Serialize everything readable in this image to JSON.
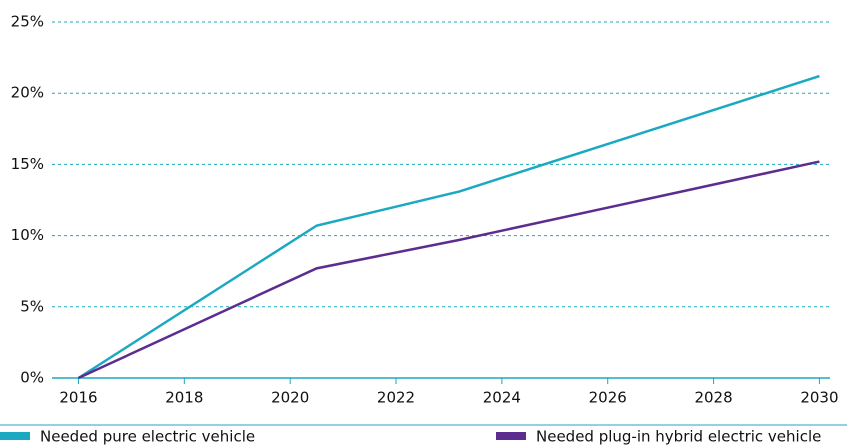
{
  "chart_data": {
    "type": "line",
    "x": [
      2016,
      2020.5,
      2023.2,
      2030
    ],
    "series": [
      {
        "name": "Needed pure electric vehicle",
        "color": "#1ba9c1",
        "values": [
          0,
          10.7,
          13.1,
          21.2
        ]
      },
      {
        "name": "Needed plug-in hybrid electric vehicle",
        "color": "#5c2d8f",
        "values": [
          0,
          7.7,
          9.7,
          15.2
        ]
      }
    ],
    "xlim": [
      2015.5,
      2030.2
    ],
    "xticks": [
      2016,
      2018,
      2020,
      2022,
      2024,
      2026,
      2028,
      2030
    ],
    "ylim": [
      0,
      25
    ],
    "yticks": [
      {
        "value": 0,
        "label": "0%"
      },
      {
        "value": 5,
        "label": "5%"
      },
      {
        "value": 10,
        "label": "10%"
      },
      {
        "value": 15,
        "label": "15%"
      },
      {
        "value": 20,
        "label": "20%"
      },
      {
        "value": 25,
        "label": "25%"
      }
    ],
    "grid": true,
    "legend": "bottom"
  }
}
